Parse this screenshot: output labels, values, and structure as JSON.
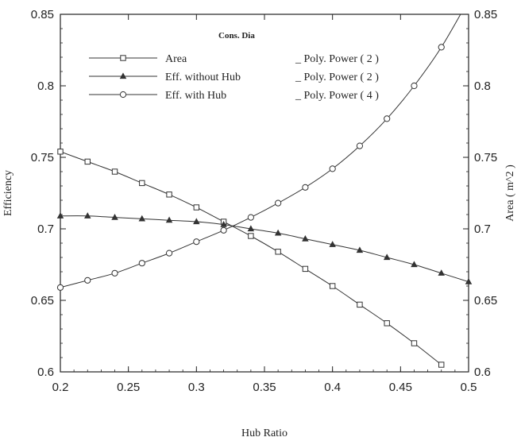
{
  "chart_data": {
    "type": "line",
    "title": "Cons. Dia",
    "xlabel": "Hub Ratio",
    "ylabel_left": "Efficiency",
    "ylabel_right": "Area ( m^2 )",
    "xlim": [
      0.2,
      0.5
    ],
    "ylim": [
      0.6,
      0.85
    ],
    "ylim_right": [
      0.6,
      0.85
    ],
    "x_ticks": [
      "0.2",
      "0.25",
      "0.3",
      "0.35",
      "0.4",
      "0.45",
      "0.5"
    ],
    "y_ticks": [
      "0.6",
      "0.65",
      "0.7",
      "0.75",
      "0.8",
      "0.85"
    ],
    "grid": false,
    "legend_position": "top-left",
    "series": [
      {
        "name": "Area",
        "fit": "_ Poly. Power ( 2 )",
        "marker": "square",
        "x": [
          0.2,
          0.22,
          0.24,
          0.26,
          0.28,
          0.3,
          0.32,
          0.34,
          0.36,
          0.38,
          0.4,
          0.42,
          0.44,
          0.46,
          0.48
        ],
        "y": [
          0.754,
          0.747,
          0.74,
          0.732,
          0.724,
          0.715,
          0.705,
          0.695,
          0.684,
          0.672,
          0.66,
          0.647,
          0.634,
          0.62,
          0.605
        ]
      },
      {
        "name": "Eff. without Hub",
        "fit": "_ Poly. Power ( 2 )",
        "marker": "triangle",
        "x": [
          0.2,
          0.22,
          0.24,
          0.26,
          0.28,
          0.3,
          0.32,
          0.34,
          0.36,
          0.38,
          0.4,
          0.42,
          0.44,
          0.46,
          0.48,
          0.5
        ],
        "y": [
          0.709,
          0.709,
          0.708,
          0.707,
          0.706,
          0.705,
          0.703,
          0.7,
          0.697,
          0.693,
          0.689,
          0.685,
          0.68,
          0.675,
          0.669,
          0.663
        ]
      },
      {
        "name": "Eff. with Hub",
        "fit": "_ Poly. Power ( 4 )",
        "marker": "circle",
        "x": [
          0.2,
          0.22,
          0.24,
          0.26,
          0.28,
          0.3,
          0.32,
          0.34,
          0.36,
          0.38,
          0.4,
          0.42,
          0.44,
          0.46,
          0.48
        ],
        "y": [
          0.659,
          0.664,
          0.669,
          0.676,
          0.683,
          0.691,
          0.699,
          0.708,
          0.718,
          0.729,
          0.742,
          0.758,
          0.777,
          0.8,
          0.827
        ]
      }
    ],
    "curve_extension": {
      "series": "Eff. with Hub",
      "x": 0.5,
      "y": 0.86
    }
  }
}
